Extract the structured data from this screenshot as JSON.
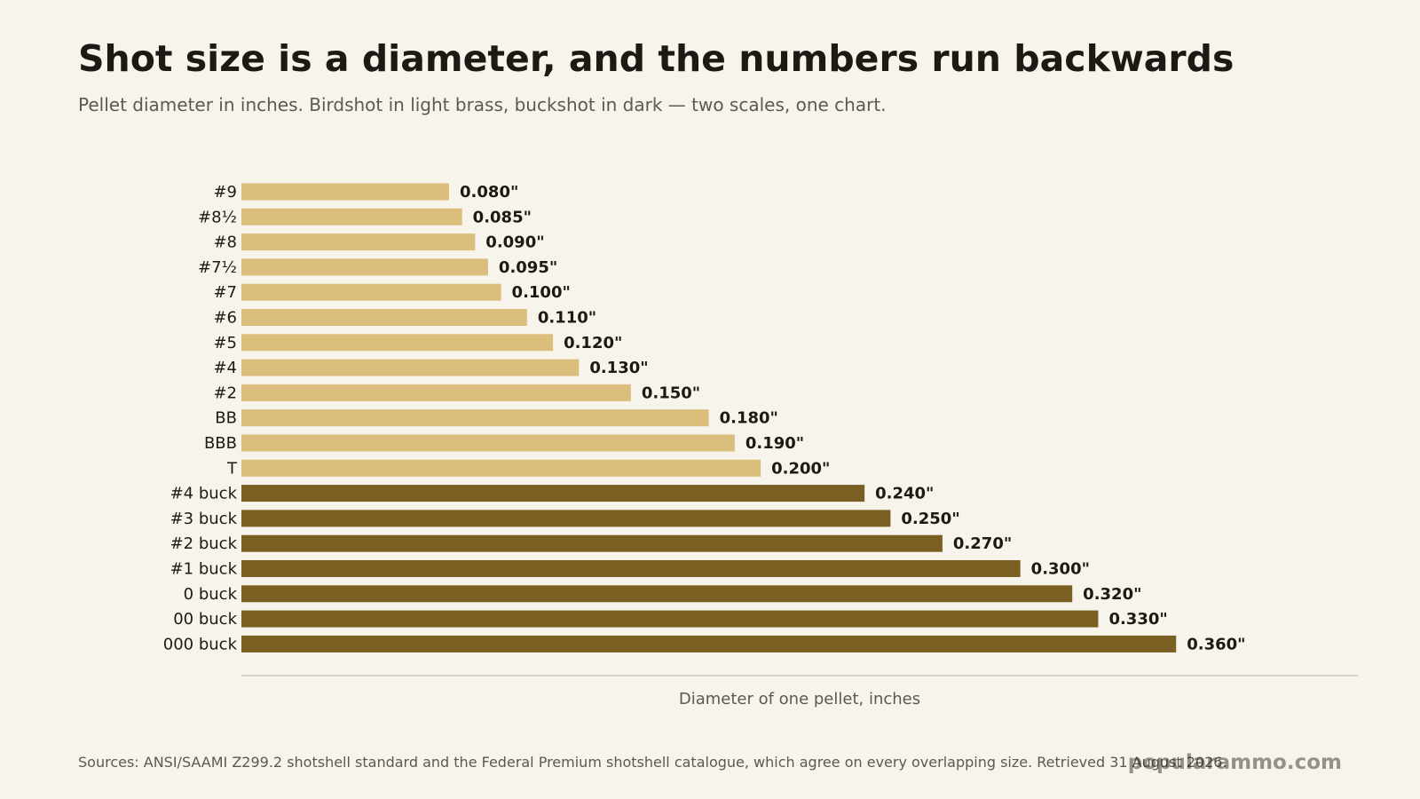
{
  "header": {
    "title": "Shot size is a diameter, and the numbers run backwards",
    "subtitle": "Pellet diameter in inches. Birdshot in light brass, buckshot in dark — two scales, one chart."
  },
  "footer": {
    "source": "Sources: ANSI/SAAMI Z299.2 shotshell standard and the Federal Premium shotshell catalogue, which agree on every overlapping size. Retrieved 31 August 2026.",
    "brand": "popularammo.com"
  },
  "colors": {
    "birdshot": "#dbbd7c",
    "buckshot": "#7a5f22",
    "axis": "#d6d2c4",
    "background": "#f7f4ec"
  },
  "chart_data": {
    "type": "bar",
    "orientation": "horizontal",
    "xlabel": "Diameter of one pellet, inches",
    "xlim": [
      0,
      0.43
    ],
    "grid": false,
    "value_suffix": "\"",
    "categories": [
      "#9",
      "#8½",
      "#8",
      "#7½",
      "#7",
      "#6",
      "#5",
      "#4",
      "#2",
      "BB",
      "BBB",
      "T",
      "#4 buck",
      "#3 buck",
      "#2 buck",
      "#1 buck",
      "0 buck",
      "00 buck",
      "000 buck"
    ],
    "values": [
      0.08,
      0.085,
      0.09,
      0.095,
      0.1,
      0.11,
      0.12,
      0.13,
      0.15,
      0.18,
      0.19,
      0.2,
      0.24,
      0.25,
      0.27,
      0.3,
      0.32,
      0.33,
      0.36
    ],
    "groups": [
      "birdshot",
      "birdshot",
      "birdshot",
      "birdshot",
      "birdshot",
      "birdshot",
      "birdshot",
      "birdshot",
      "birdshot",
      "birdshot",
      "birdshot",
      "birdshot",
      "buckshot",
      "buckshot",
      "buckshot",
      "buckshot",
      "buckshot",
      "buckshot",
      "buckshot"
    ]
  }
}
